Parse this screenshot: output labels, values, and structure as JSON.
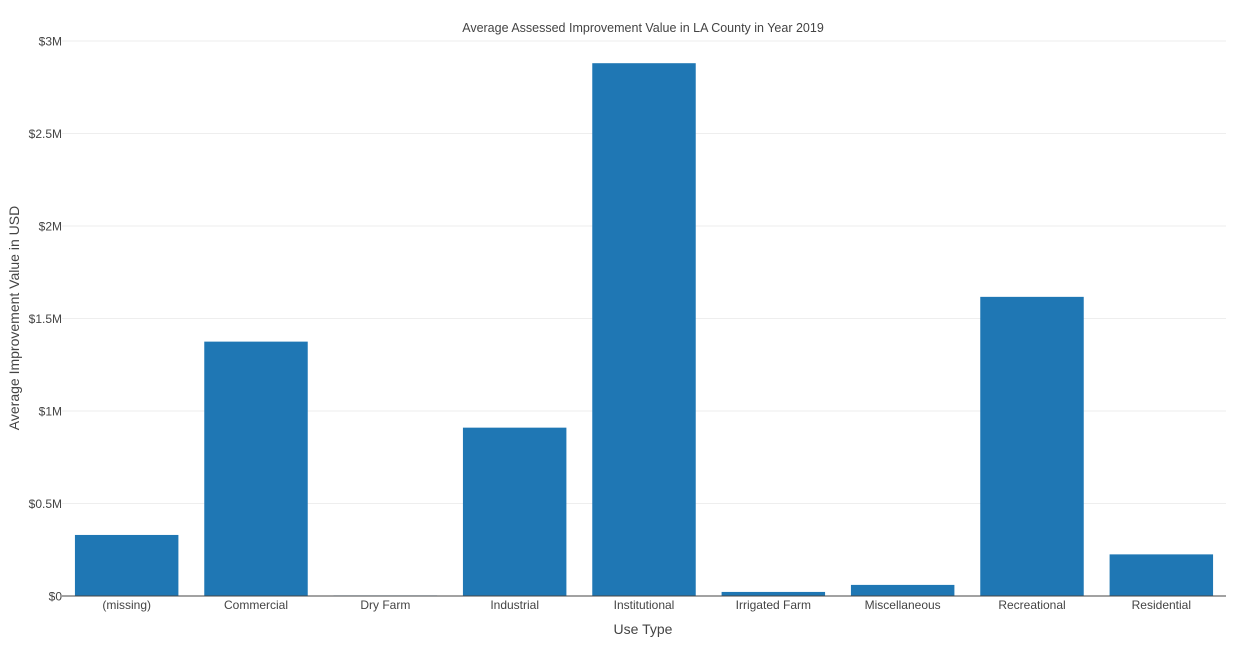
{
  "chart_data": {
    "type": "bar",
    "title": "Average Assessed Improvement Value in LA County in Year 2019",
    "xlabel": "Use Type",
    "ylabel": "Average Improvement Value in USD",
    "categories": [
      "(missing)",
      "Commercial",
      "Dry Farm",
      "Industrial",
      "Institutional",
      "Irrigated Farm",
      "Miscellaneous",
      "Recreational",
      "Residential"
    ],
    "values": [
      330000,
      1375000,
      3000,
      910000,
      2880000,
      22000,
      60000,
      1617000,
      225000
    ],
    "ylim": [
      0,
      3000000
    ],
    "yticks": [
      {
        "value": 0,
        "label": "$0"
      },
      {
        "value": 500000,
        "label": "$0.5M"
      },
      {
        "value": 1000000,
        "label": "$1M"
      },
      {
        "value": 1500000,
        "label": "$1.5M"
      },
      {
        "value": 2000000,
        "label": "$2M"
      },
      {
        "value": 2500000,
        "label": "$2.5M"
      },
      {
        "value": 3000000,
        "label": "$3M"
      }
    ],
    "grid": true,
    "bar_color": "#1f77b4",
    "grid_color": "#eeeeee",
    "axis_color": "#444444",
    "text_color": "#444444"
  }
}
